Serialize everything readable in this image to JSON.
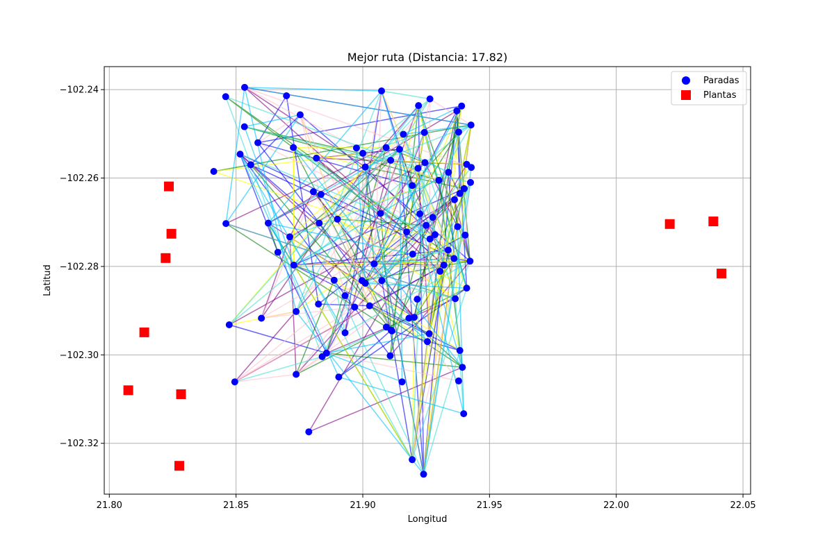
{
  "chart_data": {
    "type": "scatter",
    "title": "Mejor ruta (Distancia: 17.82)",
    "xlabel": "Longitud",
    "ylabel": "Latitud",
    "xlim": [
      21.798,
      22.053
    ],
    "ylim": [
      -102.3315,
      -102.2348
    ],
    "xticks": [
      21.8,
      21.85,
      21.9,
      21.95,
      22.0,
      22.05
    ],
    "xtick_labels": [
      "21.80",
      "21.85",
      "21.90",
      "21.95",
      "22.00",
      "22.05"
    ],
    "yticks": [
      -102.24,
      -102.26,
      -102.28,
      -102.3,
      -102.32
    ],
    "ytick_labels": [
      "−102.24",
      "−102.26",
      "−102.28",
      "−102.30",
      "−102.32"
    ],
    "grid": true,
    "legend_position": "top-right",
    "legend": [
      {
        "label": "Paradas",
        "marker": "circle",
        "color": "#0000ff"
      },
      {
        "label": "Plantas",
        "marker": "square",
        "color": "#ff0000"
      }
    ],
    "plantas": [
      [
        21.8235,
        -102.2619
      ],
      [
        21.8245,
        -102.2726
      ],
      [
        21.8222,
        -102.2781
      ],
      [
        21.8138,
        -102.2949
      ],
      [
        21.8075,
        -102.308
      ],
      [
        21.8283,
        -102.3089
      ],
      [
        21.8276,
        -102.3251
      ],
      [
        22.0211,
        -102.2704
      ],
      [
        22.0383,
        -102.2698
      ],
      [
        22.0415,
        -102.2816
      ]
    ],
    "paradas": [
      [
        21.8534,
        -102.2395
      ],
      [
        21.8459,
        -102.2416
      ],
      [
        21.8699,
        -102.2414
      ],
      [
        21.9074,
        -102.2403
      ],
      [
        21.9265,
        -102.2421
      ],
      [
        21.922,
        -102.2436
      ],
      [
        21.939,
        -102.2437
      ],
      [
        21.9371,
        -102.2448
      ],
      [
        21.8753,
        -102.2457
      ],
      [
        21.8533,
        -102.2484
      ],
      [
        21.9427,
        -102.248
      ],
      [
        21.9243,
        -102.2497
      ],
      [
        21.916,
        -102.2501
      ],
      [
        21.9378,
        -102.2496
      ],
      [
        21.8586,
        -102.252
      ],
      [
        21.8726,
        -102.2531
      ],
      [
        21.8975,
        -102.2532
      ],
      [
        21.9092,
        -102.2531
      ],
      [
        21.9145,
        -102.2535
      ],
      [
        21.8516,
        -102.2546
      ],
      [
        21.9,
        -102.2544
      ],
      [
        21.911,
        -102.256
      ],
      [
        21.8817,
        -102.2555
      ],
      [
        21.8558,
        -102.257
      ],
      [
        21.9245,
        -102.2565
      ],
      [
        21.941,
        -102.2569
      ],
      [
        21.9428,
        -102.2576
      ],
      [
        21.901,
        -102.2575
      ],
      [
        21.9218,
        -102.2578
      ],
      [
        21.9338,
        -102.2587
      ],
      [
        21.8412,
        -102.2585
      ],
      [
        21.93,
        -102.2605
      ],
      [
        21.9425,
        -102.261
      ],
      [
        21.9195,
        -102.2617
      ],
      [
        21.94,
        -102.2624
      ],
      [
        21.8805,
        -102.2631
      ],
      [
        21.8835,
        -102.2637
      ],
      [
        21.9383,
        -102.2635
      ],
      [
        21.9362,
        -102.2649
      ],
      [
        21.907,
        -102.268
      ],
      [
        21.9225,
        -102.2681
      ],
      [
        21.9276,
        -102.2689
      ],
      [
        21.89,
        -102.2693
      ],
      [
        21.846,
        -102.2703
      ],
      [
        21.8627,
        -102.2702
      ],
      [
        21.8828,
        -102.2702
      ],
      [
        21.925,
        -102.2707
      ],
      [
        21.9374,
        -102.271
      ],
      [
        21.9173,
        -102.2722
      ],
      [
        21.8712,
        -102.2733
      ],
      [
        21.9285,
        -102.2728
      ],
      [
        21.9404,
        -102.2729
      ],
      [
        21.9265,
        -102.2738
      ],
      [
        21.9337,
        -102.2763
      ],
      [
        21.8665,
        -102.2768
      ],
      [
        21.9197,
        -102.2772
      ],
      [
        21.936,
        -102.2782
      ],
      [
        21.9423,
        -102.2788
      ],
      [
        21.8728,
        -102.2797
      ],
      [
        21.9045,
        -102.2794
      ],
      [
        21.932,
        -102.2797
      ],
      [
        21.9305,
        -102.2811
      ],
      [
        21.8887,
        -102.2831
      ],
      [
        21.8997,
        -102.2832
      ],
      [
        21.901,
        -102.2838
      ],
      [
        21.9075,
        -102.2832
      ],
      [
        21.941,
        -102.2849
      ],
      [
        21.9365,
        -102.2873
      ],
      [
        21.9215,
        -102.2874
      ],
      [
        21.893,
        -102.2866
      ],
      [
        21.8825,
        -102.2885
      ],
      [
        21.8968,
        -102.2892
      ],
      [
        21.9027,
        -102.2889
      ],
      [
        21.8737,
        -102.2902
      ],
      [
        21.9182,
        -102.2917
      ],
      [
        21.9203,
        -102.2915
      ],
      [
        21.86,
        -102.2917
      ],
      [
        21.8473,
        -102.2932
      ],
      [
        21.9093,
        -102.2937
      ],
      [
        21.9112,
        -102.2944
      ],
      [
        21.9115,
        -102.2946
      ],
      [
        21.893,
        -102.295
      ],
      [
        21.9262,
        -102.2952
      ],
      [
        21.9255,
        -102.297
      ],
      [
        21.9383,
        -102.299
      ],
      [
        21.8857,
        -102.2996
      ],
      [
        21.884,
        -102.3004
      ],
      [
        21.9108,
        -102.3002
      ],
      [
        21.9393,
        -102.3028
      ],
      [
        21.8737,
        -102.3044
      ],
      [
        21.8905,
        -102.305
      ],
      [
        21.8495,
        -102.3061
      ],
      [
        21.9155,
        -102.3061
      ],
      [
        21.9378,
        -102.3059
      ],
      [
        21.9398,
        -102.3133
      ],
      [
        21.8787,
        -102.3174
      ],
      [
        21.9195,
        -102.3237
      ],
      [
        21.924,
        -102.327
      ]
    ]
  }
}
